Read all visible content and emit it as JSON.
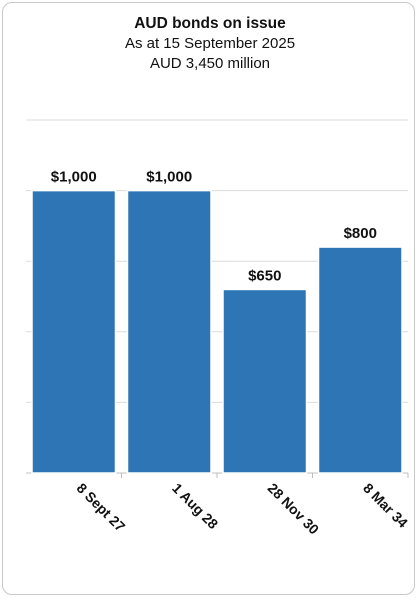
{
  "chart_data": {
    "type": "bar",
    "title": "AUD bonds on issue",
    "subtitle_lines": [
      "As at 15 September 2025",
      "AUD 3,450 million"
    ],
    "categories": [
      "8 Sept 27",
      "1 Aug 28",
      "28 Nov 30",
      "8 Mar 34"
    ],
    "values": [
      1000,
      1000,
      650,
      800
    ],
    "data_labels": [
      "$1,000",
      "$1,000",
      "$650",
      "$800"
    ],
    "xlabel": "",
    "ylabel": "",
    "ylim": [
      0,
      1250
    ],
    "grid": true,
    "legend": "none",
    "bar_color": "#2e75b6"
  }
}
